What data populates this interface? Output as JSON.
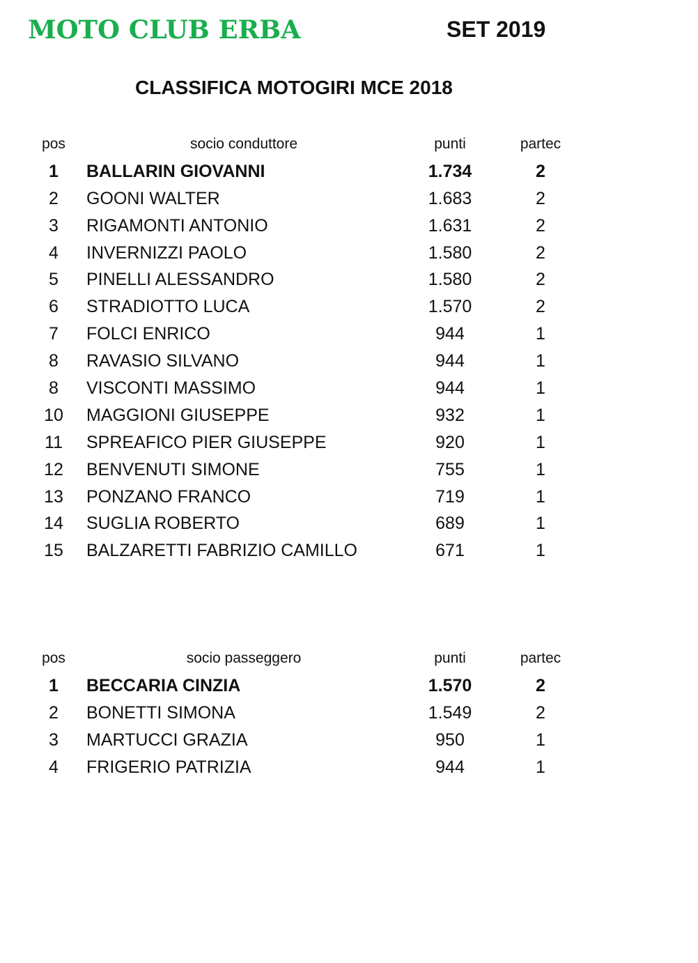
{
  "header": {
    "logo_text": "MOTO CLUB ERBA",
    "date": "SET 2019",
    "title": "CLASSIFICA MOTOGIRI MCE 2018",
    "logo_color": "#1aae4e"
  },
  "drivers": {
    "columns": [
      "pos",
      "socio conduttore",
      "punti",
      "partec"
    ],
    "rows": [
      {
        "pos": "1",
        "name": "BALLARIN GIOVANNI",
        "punti": "1.734",
        "partec": "2"
      },
      {
        "pos": "2",
        "name": "GOONI WALTER",
        "punti": "1.683",
        "partec": "2"
      },
      {
        "pos": "3",
        "name": "RIGAMONTI ANTONIO",
        "punti": "1.631",
        "partec": "2"
      },
      {
        "pos": "4",
        "name": "INVERNIZZI PAOLO",
        "punti": "1.580",
        "partec": "2"
      },
      {
        "pos": "5",
        "name": "PINELLI ALESSANDRO",
        "punti": "1.580",
        "partec": "2"
      },
      {
        "pos": "6",
        "name": "STRADIOTTO LUCA",
        "punti": "1.570",
        "partec": "2"
      },
      {
        "pos": "7",
        "name": "FOLCI ENRICO",
        "punti": "944",
        "partec": "1"
      },
      {
        "pos": "8",
        "name": "RAVASIO SILVANO",
        "punti": "944",
        "partec": "1"
      },
      {
        "pos": "8",
        "name": "VISCONTI MASSIMO",
        "punti": "944",
        "partec": "1"
      },
      {
        "pos": "10",
        "name": "MAGGIONI GIUSEPPE",
        "punti": "932",
        "partec": "1"
      },
      {
        "pos": "11",
        "name": "SPREAFICO PIER GIUSEPPE",
        "punti": "920",
        "partec": "1"
      },
      {
        "pos": "12",
        "name": "BENVENUTI SIMONE",
        "punti": "755",
        "partec": "1"
      },
      {
        "pos": "13",
        "name": "PONZANO FRANCO",
        "punti": "719",
        "partec": "1"
      },
      {
        "pos": "14",
        "name": "SUGLIA ROBERTO",
        "punti": "689",
        "partec": "1"
      },
      {
        "pos": "15",
        "name": "BALZARETTI FABRIZIO CAMILLO",
        "punti": "671",
        "partec": "1"
      }
    ]
  },
  "passengers": {
    "columns": [
      "pos",
      "socio passeggero",
      "punti",
      "partec"
    ],
    "rows": [
      {
        "pos": "1",
        "name": "BECCARIA CINZIA",
        "punti": "1.570",
        "partec": "2"
      },
      {
        "pos": "2",
        "name": "BONETTI SIMONA",
        "punti": "1.549",
        "partec": "2"
      },
      {
        "pos": "3",
        "name": "MARTUCCI GRAZIA",
        "punti": "950",
        "partec": "1"
      },
      {
        "pos": "4",
        "name": "FRIGERIO PATRIZIA",
        "punti": "944",
        "partec": "1"
      }
    ]
  }
}
